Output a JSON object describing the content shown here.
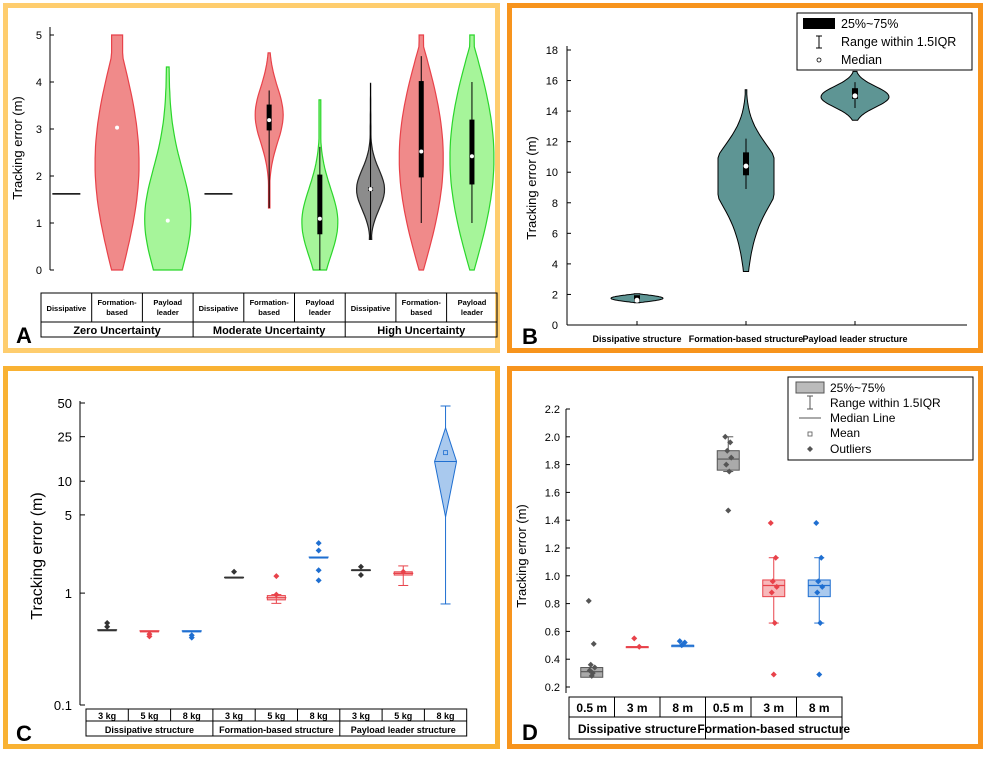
{
  "panels": {
    "A": "A",
    "B": "B",
    "C": "C",
    "D": "D"
  },
  "colors": {
    "red": "#f08a8a",
    "green": "#a6f59a",
    "grey": "#8c8c8c",
    "teal": "#5e9594",
    "blue": "#1f6fd1",
    "red_line": "#e8424a",
    "blue_fill": "#a9c9ee"
  },
  "chart_data": [
    {
      "id": "A",
      "type": "violin",
      "ylabel": "Tracking error (m)",
      "ylim": [
        0,
        5
      ],
      "yticks": [
        0,
        1,
        2,
        3,
        4,
        5
      ],
      "groups": [
        "Zero Uncertainty",
        "Moderate Uncertainty",
        "High Uncertainty"
      ],
      "categories": [
        "Dissipative",
        "Formation-based",
        "Payload leader"
      ],
      "category_lines": [
        [
          "Dissipative"
        ],
        [
          "Formation-",
          "based"
        ],
        [
          "Payload",
          "leader"
        ]
      ],
      "series": [
        {
          "group": "Zero Uncertainty",
          "category": "Dissipative",
          "min": 1.62,
          "max": 1.62,
          "q1": 1.62,
          "q3": 1.62,
          "median": 1.62,
          "color": "grey"
        },
        {
          "group": "Zero Uncertainty",
          "category": "Formation-based",
          "min": 0.0,
          "max": 5.0,
          "q1": 3.03,
          "q3": 3.03,
          "median": 3.03,
          "color": "red"
        },
        {
          "group": "Zero Uncertainty",
          "category": "Payload leader",
          "min": 0.0,
          "max": 4.32,
          "q1": 1.05,
          "q3": 1.05,
          "median": 1.05,
          "color": "green"
        },
        {
          "group": "Moderate Uncertainty",
          "category": "Dissipative",
          "min": 1.62,
          "max": 1.62,
          "q1": 1.62,
          "q3": 1.62,
          "median": 1.62,
          "color": "grey"
        },
        {
          "group": "Moderate Uncertainty",
          "category": "Formation-based",
          "min": 1.32,
          "max": 4.62,
          "q1": 2.97,
          "q3": 3.52,
          "median": 3.19,
          "color": "red"
        },
        {
          "group": "Moderate Uncertainty",
          "category": "Payload leader",
          "min": 0.0,
          "max": 3.62,
          "q1": 0.76,
          "q3": 2.03,
          "median": 1.09,
          "color": "green"
        },
        {
          "group": "High Uncertainty",
          "category": "Dissipative",
          "min": 0.65,
          "max": 3.97,
          "q1": 1.68,
          "q3": 1.76,
          "median": 1.72,
          "color": "grey"
        },
        {
          "group": "High Uncertainty",
          "category": "Formation-based",
          "min": 0.0,
          "max": 5.0,
          "q1": 1.97,
          "q3": 4.02,
          "median": 2.52,
          "color": "red"
        },
        {
          "group": "High Uncertainty",
          "category": "Payload leader",
          "min": 0.0,
          "max": 5.0,
          "q1": 1.82,
          "q3": 3.2,
          "median": 2.42,
          "color": "green"
        }
      ]
    },
    {
      "id": "B",
      "type": "violin",
      "ylabel": "Tracking error (m)",
      "ylim": [
        0,
        18
      ],
      "yticks": [
        0,
        2,
        4,
        6,
        8,
        10,
        12,
        14,
        16,
        18
      ],
      "categories": [
        "Dissipative structure",
        "Formation-based structure",
        "Payload leader structure"
      ],
      "series": [
        {
          "category": "Dissipative structure",
          "min": 1.45,
          "max": 2.05,
          "q1": 1.55,
          "q3": 1.95,
          "median": 1.62
        },
        {
          "category": "Formation-based structure",
          "min": 3.5,
          "max": 15.4,
          "q1": 9.8,
          "q3": 11.3,
          "median": 10.4
        },
        {
          "category": "Payload leader structure",
          "min": 13.4,
          "max": 16.6,
          "q1": 14.8,
          "q3": 15.5,
          "median": 15.0
        }
      ],
      "legend": [
        "25%~75%",
        "Range within 1.5IQR",
        "Median"
      ]
    },
    {
      "id": "C",
      "type": "box",
      "yscale": "log",
      "ylabel": "Tracking error (m)",
      "ylim": [
        0.1,
        50
      ],
      "yticks": [
        0.1,
        1,
        5,
        10,
        25,
        50
      ],
      "groups": [
        "Dissipative structure",
        "Formation-based structure",
        "Payload leader structure"
      ],
      "categories": [
        "3 kg",
        "5 kg",
        "8 kg"
      ],
      "series": [
        {
          "group": "Dissipative structure",
          "category": "3 kg",
          "median": 0.47,
          "q1": 0.47,
          "q3": 0.47,
          "outliers": [
            0.54,
            0.5
          ],
          "color": "grey"
        },
        {
          "group": "Dissipative structure",
          "category": "5 kg",
          "median": 0.46,
          "q1": 0.45,
          "q3": 0.46,
          "outliers": [
            0.43,
            0.41
          ],
          "color": "red"
        },
        {
          "group": "Dissipative structure",
          "category": "8 kg",
          "median": 0.46,
          "q1": 0.45,
          "q3": 0.46,
          "outliers": [
            0.42,
            0.4
          ],
          "color": "blue"
        },
        {
          "group": "Formation-based structure",
          "category": "3 kg",
          "median": 1.38,
          "q1": 1.37,
          "q3": 1.39,
          "outliers": [
            1.55
          ],
          "color": "grey"
        },
        {
          "group": "Formation-based structure",
          "category": "5 kg",
          "median": 0.91,
          "q1": 0.87,
          "q3": 0.95,
          "wlo": 0.81,
          "whi": 0.97,
          "outliers": [
            1.42,
            0.97
          ],
          "color": "red"
        },
        {
          "group": "Formation-based structure",
          "category": "8 kg",
          "median": 2.1,
          "q1": 2.1,
          "q3": 2.1,
          "outliers": [
            2.8,
            2.4,
            1.6,
            1.3
          ],
          "color": "blue"
        },
        {
          "group": "Payload leader structure",
          "category": "3 kg",
          "median": 1.6,
          "q1": 1.59,
          "q3": 1.62,
          "outliers": [
            1.72,
            1.45
          ],
          "color": "grey"
        },
        {
          "group": "Payload leader structure",
          "category": "5 kg",
          "median": 1.5,
          "q1": 1.45,
          "q3": 1.55,
          "wlo": 1.17,
          "whi": 1.75,
          "outliers": [
            1.55
          ],
          "color": "red"
        },
        {
          "group": "Payload leader structure",
          "category": "8 kg",
          "median": 15.0,
          "q1": 4.8,
          "q3": 30.0,
          "wlo": 0.8,
          "whi": 47.0,
          "mean": 18.0,
          "color": "blue"
        }
      ]
    },
    {
      "id": "D",
      "type": "box",
      "ylabel": "Tracking error (m)",
      "ylim": [
        0.15,
        2.2
      ],
      "yticks": [
        0.2,
        0.4,
        0.6,
        0.8,
        1.0,
        1.2,
        1.4,
        1.6,
        1.8,
        2.0,
        2.2
      ],
      "ytick_labels": [
        "0.2",
        "0.4",
        "0.6",
        "0.8",
        "1.0",
        "1.2",
        "1.4",
        "1.6",
        "1.8",
        "2.0",
        "2.2"
      ],
      "groups": [
        "Dissipative structure",
        "Formation-based structure"
      ],
      "categories": [
        "0.5 m",
        "3 m",
        "8 m"
      ],
      "series": [
        {
          "group": "Dissipative structure",
          "category": "0.5 m",
          "median": 0.31,
          "q1": 0.27,
          "q3": 0.34,
          "outliers": [
            0.82,
            0.51,
            0.36,
            0.34,
            0.32,
            0.3,
            0.28
          ],
          "color": "grey"
        },
        {
          "group": "Dissipative structure",
          "category": "3 m",
          "median": 0.49,
          "q1": 0.49,
          "q3": 0.49,
          "outliers": [
            0.55,
            0.49
          ],
          "color": "red"
        },
        {
          "group": "Dissipative structure",
          "category": "8 m",
          "median": 0.5,
          "q1": 0.49,
          "q3": 0.5,
          "outliers": [
            0.53,
            0.52,
            0.5
          ],
          "color": "blue"
        },
        {
          "group": "Formation-based structure",
          "category": "0.5 m",
          "median": 1.84,
          "q1": 1.76,
          "q3": 1.9,
          "wlo": 1.75,
          "whi": 2.0,
          "outliers": [
            2.0,
            1.96,
            1.9,
            1.85,
            1.8,
            1.75,
            1.47
          ],
          "color": "grey"
        },
        {
          "group": "Formation-based structure",
          "category": "3 m",
          "median": 0.93,
          "q1": 0.85,
          "q3": 0.97,
          "wlo": 0.66,
          "whi": 1.13,
          "outliers": [
            1.38,
            1.13,
            0.96,
            0.92,
            0.88,
            0.66,
            0.29
          ],
          "color": "red"
        },
        {
          "group": "Formation-based structure",
          "category": "8 m",
          "median": 0.93,
          "q1": 0.85,
          "q3": 0.97,
          "wlo": 0.66,
          "whi": 1.13,
          "outliers": [
            1.38,
            1.13,
            0.96,
            0.92,
            0.88,
            0.66,
            0.29
          ],
          "color": "blue"
        }
      ],
      "legend": [
        "25%~75%",
        "Range within 1.5IQR",
        "Median Line",
        "Mean",
        "Outliers"
      ]
    }
  ]
}
